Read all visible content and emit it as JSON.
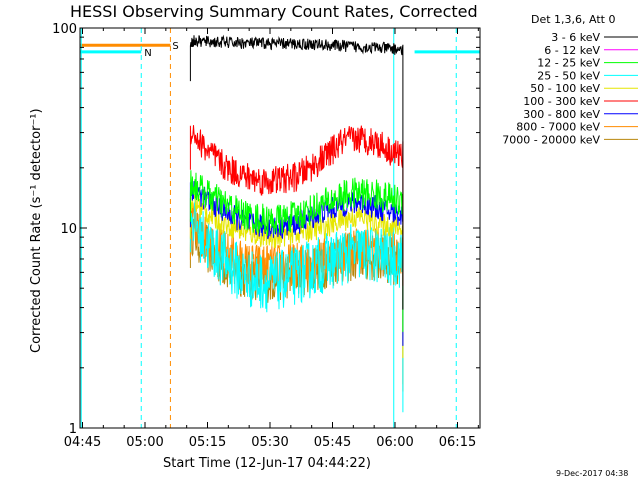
{
  "chart_data": {
    "type": "line",
    "title": "HESSI Observing Summary Count Rates, Corrected",
    "xlabel": "Start Time (12-Jun-17 04:44:22)",
    "ylabel": "Corrected Count Rate (s⁻¹ detector⁻¹)",
    "y_scale": "log",
    "ylim": [
      1,
      100
    ],
    "xlim_minutes": [
      0,
      96
    ],
    "x_ticks": [
      {
        "label": "04:45",
        "min": 0.6
      },
      {
        "label": "05:00",
        "min": 15.6
      },
      {
        "label": "05:15",
        "min": 30.6
      },
      {
        "label": "05:30",
        "min": 45.6
      },
      {
        "label": "05:45",
        "min": 60.6
      },
      {
        "label": "06:00",
        "min": 75.6
      },
      {
        "label": "06:15",
        "min": 90.6
      }
    ],
    "y_ticks": [
      {
        "label": "1",
        "value": 1
      },
      {
        "label": "10",
        "value": 10
      },
      {
        "label": "100",
        "value": 100
      }
    ],
    "legend": {
      "title": "Det 1,3,6, Att 0",
      "position": "right",
      "entries": [
        {
          "label": "3 - 6 keV",
          "color": "#000000"
        },
        {
          "label": "6 - 12 keV",
          "color": "#ff00ff"
        },
        {
          "label": "12 - 25 keV",
          "color": "#00ff00"
        },
        {
          "label": "25 - 50 keV",
          "color": "#00ffff"
        },
        {
          "label": "50 - 100 keV",
          "color": "#e6e600"
        },
        {
          "label": "100 - 300 keV",
          "color": "#ff0000"
        },
        {
          "label": "300 - 800 keV",
          "color": "#0000ff"
        },
        {
          "label": "800 - 7000 keV",
          "color": "#ff8c00"
        },
        {
          "label": "7000 - 20000 keV",
          "color": "#b8860b"
        }
      ]
    },
    "series": [
      {
        "name": "3 - 6 keV",
        "color": "#000000",
        "noise": 0.06,
        "points": [
          [
            26.5,
            86
          ],
          [
            40,
            84
          ],
          [
            55,
            83
          ],
          [
            70,
            80
          ],
          [
            77.5,
            78
          ]
        ]
      },
      {
        "name": "100 - 300 keV",
        "color": "#ff0000",
        "noise": 0.15,
        "points": [
          [
            26.5,
            31
          ],
          [
            30,
            25
          ],
          [
            35,
            20
          ],
          [
            40,
            18
          ],
          [
            45,
            17
          ],
          [
            52,
            18
          ],
          [
            58,
            22
          ],
          [
            63,
            27
          ],
          [
            67,
            28
          ],
          [
            71,
            27
          ],
          [
            75,
            24
          ],
          [
            77.5,
            23
          ]
        ]
      },
      {
        "name": "12 - 25 keV",
        "color": "#00ff00",
        "noise": 0.16,
        "points": [
          [
            26.5,
            17
          ],
          [
            30,
            15
          ],
          [
            35,
            13
          ],
          [
            40,
            11.5
          ],
          [
            46,
            10.8
          ],
          [
            52,
            11.5
          ],
          [
            58,
            13
          ],
          [
            63,
            14.5
          ],
          [
            67,
            15
          ],
          [
            72,
            14.5
          ],
          [
            77.5,
            13.5
          ]
        ]
      },
      {
        "name": "300 - 800 keV",
        "color": "#0000ff",
        "noise": 0.12,
        "points": [
          [
            26.5,
            16
          ],
          [
            30,
            14
          ],
          [
            35,
            12
          ],
          [
            40,
            10.5
          ],
          [
            46,
            10
          ],
          [
            52,
            10.5
          ],
          [
            58,
            12
          ],
          [
            63,
            13
          ],
          [
            67,
            13.5
          ],
          [
            72,
            12.5
          ],
          [
            77.5,
            11.5
          ]
        ]
      },
      {
        "name": "50 - 100 keV",
        "color": "#e6e600",
        "noise": 0.12,
        "points": [
          [
            26.5,
            14
          ],
          [
            30,
            12
          ],
          [
            35,
            10.5
          ],
          [
            40,
            9.5
          ],
          [
            46,
            9
          ],
          [
            52,
            9.5
          ],
          [
            58,
            10
          ],
          [
            63,
            11
          ],
          [
            67,
            11.5
          ],
          [
            72,
            10.5
          ],
          [
            77.5,
            10
          ]
        ]
      },
      {
        "name": "25 - 50 keV",
        "color": "#00ffff",
        "noise": 0.3,
        "points": [
          [
            26.5,
            12
          ],
          [
            30,
            8.5
          ],
          [
            35,
            6.8
          ],
          [
            40,
            5.6
          ],
          [
            46,
            5.3
          ],
          [
            52,
            5.8
          ],
          [
            58,
            6.6
          ],
          [
            63,
            7.2
          ],
          [
            67,
            7.6
          ],
          [
            72,
            7.3
          ],
          [
            77.5,
            7
          ]
        ]
      },
      {
        "name": "800 - 7000 keV",
        "color": "#ff8c00",
        "noise": 0.22,
        "points": [
          [
            26.5,
            11
          ],
          [
            30,
            9
          ],
          [
            35,
            7.5
          ],
          [
            40,
            6.6
          ],
          [
            46,
            6.5
          ],
          [
            52,
            6.6
          ],
          [
            58,
            7.0
          ],
          [
            63,
            7.6
          ],
          [
            67,
            8.0
          ],
          [
            72,
            8.0
          ],
          [
            77.5,
            7.4
          ]
        ]
      },
      {
        "name": "7000 - 20000 keV",
        "color": "#b8860b",
        "noise": 0.25,
        "points": [
          [
            26.5,
            10
          ],
          [
            30,
            8
          ],
          [
            35,
            6.5
          ],
          [
            40,
            5.8
          ],
          [
            46,
            5.6
          ],
          [
            52,
            6.0
          ],
          [
            58,
            6.5
          ],
          [
            63,
            7.0
          ],
          [
            67,
            7.2
          ],
          [
            72,
            7.0
          ],
          [
            77.5,
            6.8
          ]
        ]
      }
    ],
    "segments": [
      {
        "name": "night-bar-left",
        "color": "#00ffff",
        "x0": 0,
        "x1": 14.7,
        "y": 76
      },
      {
        "name": "night-bar-right",
        "color": "#00ffff",
        "x0": 80.3,
        "x1": 96,
        "y": 76
      },
      {
        "name": "saa-bar",
        "color": "#ff8c00",
        "x0": 0,
        "x1": 21.7,
        "y": 82
      }
    ],
    "vlines": [
      {
        "name": "night-start-line",
        "color": "#00ffff",
        "x": 0.3,
        "dashed": false
      },
      {
        "name": "night-end-dashed",
        "color": "#00ffff",
        "x": 14.7,
        "dashed": true
      },
      {
        "name": "saa-end-dashed",
        "color": "#ff8c00",
        "x": 21.7,
        "dashed": true
      },
      {
        "name": "night-2-start-line",
        "color": "#00ffff",
        "x": 75.3,
        "dashed": false
      },
      {
        "name": "night-2-end-dashed",
        "color": "#00ffff",
        "x": 90.3,
        "dashed": true
      }
    ],
    "annotations": {
      "night_marker": "N",
      "saa_marker": "S"
    }
  },
  "footer": {
    "timestamp": "9-Dec-2017 04:38"
  }
}
